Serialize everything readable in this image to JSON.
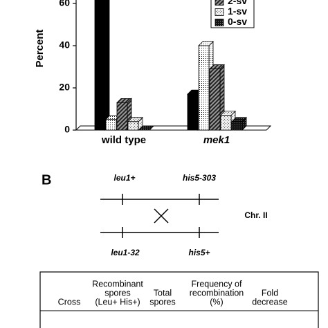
{
  "chart_data": {
    "type": "bar3d",
    "ylabel": "Percent",
    "categories": [
      "wild type",
      "mek1"
    ],
    "series": [
      {
        "color": "#000000",
        "pattern": "solid",
        "values": [
          80,
          17
        ]
      },
      {
        "color": "#ffffff",
        "pattern": "dots",
        "values": [
          5,
          40
        ]
      },
      {
        "name": "2-sv",
        "color": "#888888",
        "pattern": "hatch",
        "values": [
          13,
          29
        ]
      },
      {
        "name": "1-sv",
        "color": "#dddddd",
        "pattern": "light",
        "values": [
          4,
          7
        ]
      },
      {
        "name": "0-sv",
        "color": "#333333",
        "pattern": "check",
        "values": [
          0,
          4
        ]
      }
    ],
    "ylim": [
      0,
      60
    ],
    "yticks": [
      0,
      20,
      40,
      60
    ],
    "legend": "top-right"
  },
  "panel_b": {
    "label": "B",
    "top_left": "leu1+",
    "top_right": "his5-303",
    "bottom_left": "leu1-32",
    "bottom_right": "his5+",
    "chromosome": "Chr. II"
  },
  "table": {
    "headers": [
      [
        "Cross"
      ],
      [
        "Recombinant",
        "spores",
        "(Leu+ His+)"
      ],
      [
        "Total",
        "spores"
      ],
      [
        "Frequency of",
        "recombination",
        "(%)"
      ],
      [
        "Fold",
        "decrease"
      ]
    ]
  }
}
